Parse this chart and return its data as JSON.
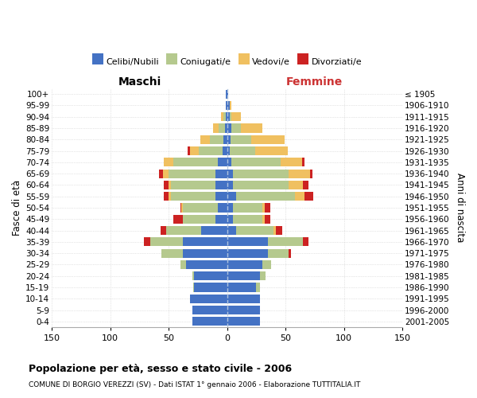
{
  "age_groups": [
    "0-4",
    "5-9",
    "10-14",
    "15-19",
    "20-24",
    "25-29",
    "30-34",
    "35-39",
    "40-44",
    "45-49",
    "50-54",
    "55-59",
    "60-64",
    "65-69",
    "70-74",
    "75-79",
    "80-84",
    "85-89",
    "90-94",
    "95-99",
    "100+"
  ],
  "birth_years": [
    "2001-2005",
    "1996-2000",
    "1991-1995",
    "1986-1990",
    "1981-1985",
    "1976-1980",
    "1971-1975",
    "1966-1970",
    "1961-1965",
    "1956-1960",
    "1951-1955",
    "1946-1950",
    "1941-1945",
    "1936-1940",
    "1931-1935",
    "1926-1930",
    "1921-1925",
    "1916-1920",
    "1911-1915",
    "1906-1910",
    "≤ 1905"
  ],
  "colors": {
    "celibi": "#4472c4",
    "coniugati": "#b5c98e",
    "vedovi": "#f0c060",
    "divorziati": "#cc2222"
  },
  "males": {
    "celibi": [
      30,
      30,
      32,
      28,
      28,
      35,
      38,
      38,
      22,
      10,
      8,
      10,
      10,
      10,
      8,
      4,
      3,
      2,
      1,
      1,
      1
    ],
    "coniugati": [
      0,
      0,
      0,
      1,
      2,
      5,
      18,
      28,
      30,
      28,
      30,
      38,
      38,
      40,
      38,
      20,
      12,
      5,
      2,
      0,
      0
    ],
    "vedovi": [
      0,
      0,
      0,
      0,
      0,
      0,
      0,
      0,
      0,
      0,
      1,
      2,
      2,
      5,
      8,
      8,
      8,
      5,
      2,
      0,
      0
    ],
    "divorziati": [
      0,
      0,
      0,
      0,
      0,
      0,
      0,
      5,
      5,
      8,
      1,
      4,
      4,
      3,
      0,
      2,
      0,
      0,
      0,
      0,
      0
    ]
  },
  "females": {
    "nubili": [
      28,
      28,
      28,
      25,
      28,
      30,
      35,
      35,
      8,
      5,
      5,
      8,
      5,
      5,
      4,
      2,
      3,
      4,
      2,
      2,
      1
    ],
    "coniugate": [
      0,
      0,
      0,
      3,
      5,
      8,
      18,
      30,
      32,
      25,
      25,
      50,
      48,
      48,
      42,
      22,
      18,
      8,
      2,
      0,
      0
    ],
    "vedove": [
      0,
      0,
      0,
      0,
      0,
      0,
      0,
      0,
      2,
      2,
      2,
      8,
      12,
      18,
      18,
      28,
      28,
      18,
      8,
      2,
      0
    ],
    "divorziate": [
      0,
      0,
      0,
      0,
      0,
      0,
      2,
      5,
      5,
      5,
      5,
      8,
      5,
      2,
      2,
      0,
      0,
      0,
      0,
      0,
      0
    ]
  },
  "xlim": 150,
  "title": "Popolazione per età, sesso e stato civile - 2006",
  "subtitle": "COMUNE DI BORGIO VEREZZI (SV) - Dati ISTAT 1° gennaio 2006 - Elaborazione TUTTITALIA.IT",
  "ylabel": "Fasce di età",
  "ylabel_right": "Anni di nascita"
}
